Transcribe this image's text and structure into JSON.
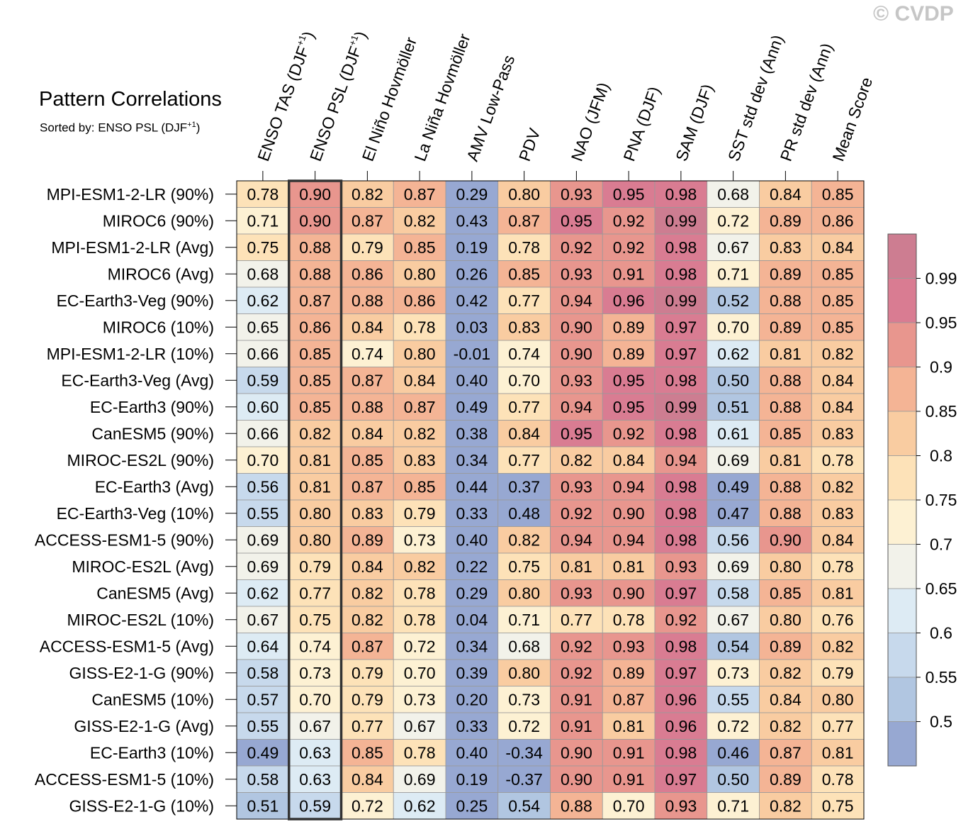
{
  "title": "Pattern Correlations",
  "subtitle": {
    "prefix": "Sorted by: ENSO PSL (DJF",
    "sup": "+1",
    "suffix": ")"
  },
  "watermark": "© CVDP",
  "chart_data": {
    "type": "heatmap",
    "columns": [
      {
        "label": "ENSO TAS (DJF",
        "sup": "+1",
        "tail": ")"
      },
      {
        "label": "ENSO PSL (DJF",
        "sup": "+1",
        "tail": ")"
      },
      {
        "label": "El Niño Hovmöller"
      },
      {
        "label": "La Niña Hovmöller"
      },
      {
        "label": "AMV Low-Pass"
      },
      {
        "label": "PDV"
      },
      {
        "label": "NAO (JFM)"
      },
      {
        "label": "PNA (DJF)"
      },
      {
        "label": "SAM (DJF)"
      },
      {
        "label": "SST std dev (Ann)"
      },
      {
        "label": "PR std dev (Ann)"
      },
      {
        "label": "Mean Score"
      }
    ],
    "highlighted_column": 1,
    "rows": [
      {
        "label": "MPI-ESM1-2-LR (90%)",
        "values": [
          "0.78",
          "0.90",
          "0.82",
          "0.87",
          "0.29",
          "0.80",
          "0.93",
          "0.95",
          "0.98",
          "0.68",
          "0.84",
          "0.85"
        ]
      },
      {
        "label": "MIROC6 (90%)",
        "values": [
          "0.71",
          "0.90",
          "0.87",
          "0.82",
          "0.43",
          "0.87",
          "0.95",
          "0.92",
          "0.99",
          "0.72",
          "0.89",
          "0.86"
        ]
      },
      {
        "label": "MPI-ESM1-2-LR (Avg)",
        "values": [
          "0.75",
          "0.88",
          "0.79",
          "0.85",
          "0.19",
          "0.78",
          "0.92",
          "0.92",
          "0.98",
          "0.67",
          "0.83",
          "0.84"
        ]
      },
      {
        "label": "MIROC6 (Avg)",
        "values": [
          "0.68",
          "0.88",
          "0.86",
          "0.80",
          "0.26",
          "0.85",
          "0.93",
          "0.91",
          "0.98",
          "0.71",
          "0.89",
          "0.85"
        ]
      },
      {
        "label": "EC-Earth3-Veg (90%)",
        "values": [
          "0.62",
          "0.87",
          "0.88",
          "0.86",
          "0.42",
          "0.77",
          "0.94",
          "0.96",
          "0.99",
          "0.52",
          "0.88",
          "0.85"
        ]
      },
      {
        "label": "MIROC6 (10%)",
        "values": [
          "0.65",
          "0.86",
          "0.84",
          "0.78",
          "0.03",
          "0.83",
          "0.90",
          "0.89",
          "0.97",
          "0.70",
          "0.89",
          "0.85"
        ]
      },
      {
        "label": "MPI-ESM1-2-LR (10%)",
        "values": [
          "0.66",
          "0.85",
          "0.74",
          "0.80",
          "-0.01",
          "0.74",
          "0.90",
          "0.89",
          "0.97",
          "0.62",
          "0.81",
          "0.82"
        ]
      },
      {
        "label": "EC-Earth3-Veg (Avg)",
        "values": [
          "0.59",
          "0.85",
          "0.87",
          "0.84",
          "0.40",
          "0.70",
          "0.93",
          "0.95",
          "0.98",
          "0.50",
          "0.88",
          "0.84"
        ]
      },
      {
        "label": "EC-Earth3 (90%)",
        "values": [
          "0.60",
          "0.85",
          "0.88",
          "0.87",
          "0.49",
          "0.77",
          "0.94",
          "0.95",
          "0.99",
          "0.51",
          "0.88",
          "0.84"
        ]
      },
      {
        "label": "CanESM5 (90%)",
        "values": [
          "0.66",
          "0.82",
          "0.84",
          "0.82",
          "0.38",
          "0.84",
          "0.95",
          "0.92",
          "0.98",
          "0.61",
          "0.85",
          "0.83"
        ]
      },
      {
        "label": "MIROC-ES2L (90%)",
        "values": [
          "0.70",
          "0.81",
          "0.85",
          "0.83",
          "0.34",
          "0.77",
          "0.82",
          "0.84",
          "0.94",
          "0.69",
          "0.81",
          "0.78"
        ]
      },
      {
        "label": "EC-Earth3 (Avg)",
        "values": [
          "0.56",
          "0.81",
          "0.87",
          "0.85",
          "0.44",
          "0.37",
          "0.93",
          "0.94",
          "0.98",
          "0.49",
          "0.88",
          "0.82"
        ]
      },
      {
        "label": "EC-Earth3-Veg (10%)",
        "values": [
          "0.55",
          "0.80",
          "0.83",
          "0.79",
          "0.33",
          "0.48",
          "0.92",
          "0.90",
          "0.98",
          "0.47",
          "0.88",
          "0.83"
        ]
      },
      {
        "label": "ACCESS-ESM1-5 (90%)",
        "values": [
          "0.69",
          "0.80",
          "0.89",
          "0.73",
          "0.40",
          "0.82",
          "0.94",
          "0.94",
          "0.98",
          "0.56",
          "0.90",
          "0.84"
        ]
      },
      {
        "label": "MIROC-ES2L (Avg)",
        "values": [
          "0.69",
          "0.79",
          "0.84",
          "0.82",
          "0.22",
          "0.75",
          "0.81",
          "0.81",
          "0.93",
          "0.69",
          "0.80",
          "0.78"
        ]
      },
      {
        "label": "CanESM5 (Avg)",
        "values": [
          "0.62",
          "0.77",
          "0.82",
          "0.78",
          "0.29",
          "0.80",
          "0.93",
          "0.90",
          "0.97",
          "0.58",
          "0.85",
          "0.81"
        ]
      },
      {
        "label": "MIROC-ES2L (10%)",
        "values": [
          "0.67",
          "0.75",
          "0.82",
          "0.78",
          "0.04",
          "0.71",
          "0.77",
          "0.78",
          "0.92",
          "0.67",
          "0.80",
          "0.76"
        ]
      },
      {
        "label": "ACCESS-ESM1-5 (Avg)",
        "values": [
          "0.64",
          "0.74",
          "0.87",
          "0.72",
          "0.34",
          "0.68",
          "0.92",
          "0.93",
          "0.98",
          "0.54",
          "0.89",
          "0.82"
        ]
      },
      {
        "label": "GISS-E2-1-G (90%)",
        "values": [
          "0.58",
          "0.73",
          "0.79",
          "0.70",
          "0.39",
          "0.80",
          "0.92",
          "0.89",
          "0.97",
          "0.73",
          "0.82",
          "0.79"
        ]
      },
      {
        "label": "CanESM5 (10%)",
        "values": [
          "0.57",
          "0.70",
          "0.79",
          "0.73",
          "0.20",
          "0.73",
          "0.91",
          "0.87",
          "0.96",
          "0.55",
          "0.84",
          "0.80"
        ]
      },
      {
        "label": "GISS-E2-1-G (Avg)",
        "values": [
          "0.55",
          "0.67",
          "0.77",
          "0.67",
          "0.33",
          "0.72",
          "0.91",
          "0.81",
          "0.96",
          "0.72",
          "0.82",
          "0.77"
        ]
      },
      {
        "label": "EC-Earth3 (10%)",
        "values": [
          "0.49",
          "0.63",
          "0.85",
          "0.78",
          "0.40",
          "-0.34",
          "0.90",
          "0.91",
          "0.98",
          "0.46",
          "0.87",
          "0.81"
        ]
      },
      {
        "label": "ACCESS-ESM1-5 (10%)",
        "values": [
          "0.58",
          "0.63",
          "0.84",
          "0.69",
          "0.19",
          "-0.37",
          "0.90",
          "0.91",
          "0.97",
          "0.50",
          "0.89",
          "0.78"
        ]
      },
      {
        "label": "GISS-E2-1-G (10%)",
        "values": [
          "0.51",
          "0.59",
          "0.72",
          "0.62",
          "0.25",
          "0.54",
          "0.88",
          "0.70",
          "0.93",
          "0.71",
          "0.82",
          "0.75"
        ]
      }
    ],
    "colorbar": {
      "labels": [
        "0.99",
        "0.95",
        "0.9",
        "0.85",
        "0.8",
        "0.75",
        "0.7",
        "0.65",
        "0.6",
        "0.55",
        "0.5"
      ],
      "thresholds": [
        0.5,
        0.55,
        0.6,
        0.65,
        0.7,
        0.75,
        0.8,
        0.85,
        0.9,
        0.95,
        0.99
      ],
      "colors": [
        "#97a8d2",
        "#b1c6e1",
        "#c7d9ec",
        "#ddebf4",
        "#f2f2ea",
        "#fdf1d3",
        "#fde2b8",
        "#f9cca1",
        "#f4b495",
        "#e8968e",
        "#d97c92",
        "#cd7d91"
      ]
    }
  }
}
